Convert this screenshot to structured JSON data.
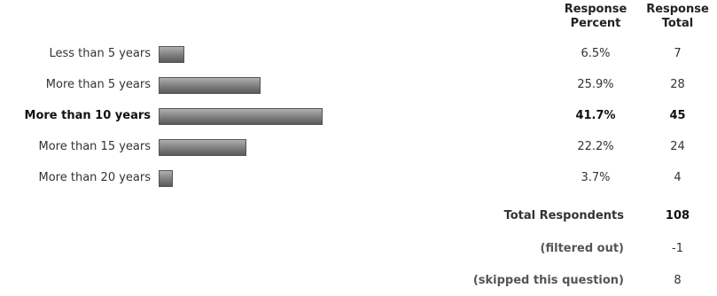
{
  "headers": {
    "percent": "Response\nPercent",
    "percent_line1": "Response",
    "percent_line2": "Percent",
    "total_line1": "Response",
    "total_line2": "Total"
  },
  "rows": [
    {
      "label": "Less than 5 years",
      "percent": "6.5%",
      "total": "7",
      "value": 6.5,
      "bold": false
    },
    {
      "label": "More than 5 years",
      "percent": "25.9%",
      "total": "28",
      "value": 25.9,
      "bold": false
    },
    {
      "label": "More than 10 years",
      "percent": "41.7%",
      "total": "45",
      "value": 41.7,
      "bold": true
    },
    {
      "label": "More than 15 years",
      "percent": "22.2%",
      "total": "24",
      "value": 22.2,
      "bold": false
    },
    {
      "label": "More than 20 years",
      "percent": "3.7%",
      "total": "4",
      "value": 3.7,
      "bold": false
    }
  ],
  "summary": [
    {
      "label": "Total Respondents",
      "value": "108",
      "bold": true
    },
    {
      "label": "(filtered out)",
      "value": "-1",
      "bold": false
    },
    {
      "label": "(skipped this question)",
      "value": "8",
      "bold": false
    }
  ],
  "chart_data": {
    "type": "bar",
    "orientation": "horizontal",
    "categories": [
      "Less than 5 years",
      "More than 5 years",
      "More than 10 years",
      "More than 15 years",
      "More than 20 years"
    ],
    "values": [
      6.5,
      25.9,
      41.7,
      22.2,
      3.7
    ],
    "totals": [
      7,
      28,
      45,
      24,
      4
    ],
    "xlim": [
      0,
      100
    ],
    "title": "",
    "xlabel": "",
    "ylabel": ""
  }
}
